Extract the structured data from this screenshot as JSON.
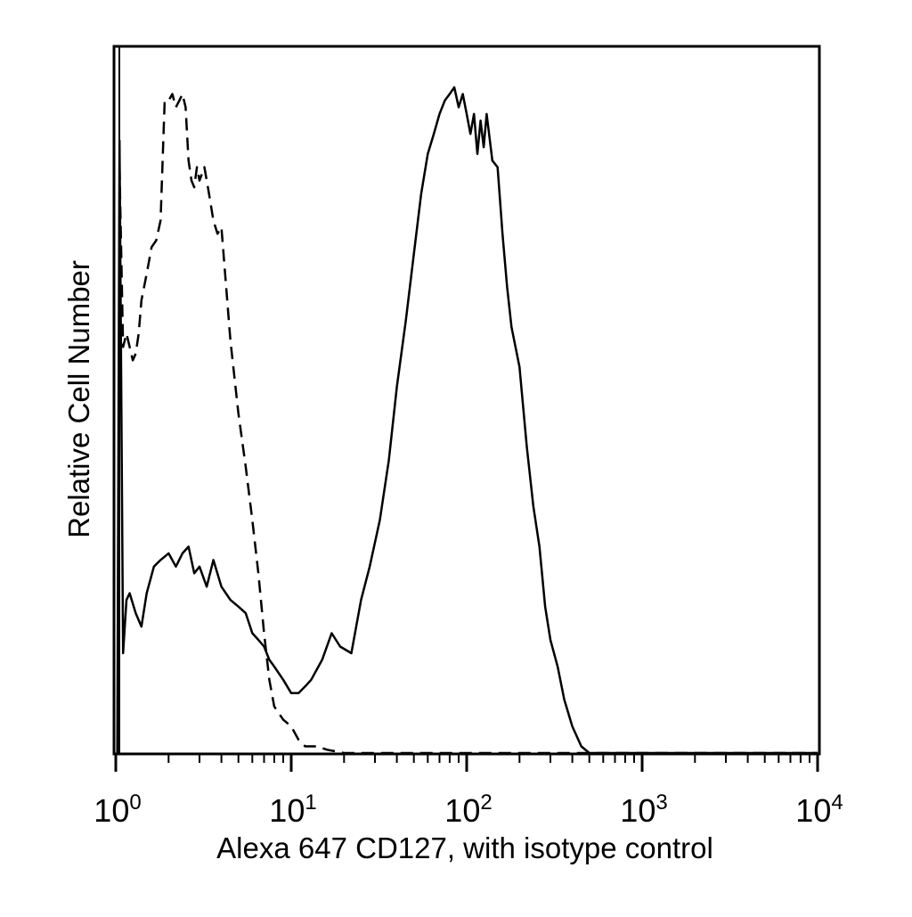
{
  "chart_data": {
    "type": "line",
    "title": "",
    "xlabel": "Alexa 647 CD127, with isotype control",
    "ylabel": "Relative Cell Number",
    "xscale": "log",
    "xlim": [
      1,
      10000
    ],
    "ylim": [
      0,
      1
    ],
    "grid": false,
    "x_ticks": [
      {
        "base": "10",
        "exp": "0",
        "value": 1
      },
      {
        "base": "10",
        "exp": "1",
        "value": 10
      },
      {
        "base": "10",
        "exp": "2",
        "value": 100
      },
      {
        "base": "10",
        "exp": "3",
        "value": 1000
      },
      {
        "base": "10",
        "exp": "4",
        "value": 10000
      }
    ],
    "series": [
      {
        "style": "solid",
        "color": "#000000",
        "x": [
          1.02,
          1.05,
          1.1,
          1.15,
          1.2,
          1.3,
          1.4,
          1.5,
          1.65,
          1.8,
          2.0,
          2.2,
          2.4,
          2.6,
          2.8,
          3.0,
          3.3,
          3.6,
          4.0,
          4.5,
          5.0,
          5.5,
          6.0,
          6.5,
          7.0,
          7.5,
          8.0,
          9.0,
          10.0,
          11.0,
          12.0,
          13.0,
          15.0,
          17.0,
          19.0,
          22.0,
          25.0,
          28.0,
          32.0,
          36.0,
          40.0,
          45.0,
          50.0,
          55.0,
          60.0,
          65.0,
          70.0,
          75.0,
          80.0,
          85.0,
          90.0,
          95.0,
          100.0,
          105.0,
          110.0,
          115.0,
          120.0,
          125.0,
          130.0,
          140.0,
          150.0,
          160.0,
          170.0,
          180.0,
          200.0,
          220.0,
          240.0,
          260.0,
          280.0,
          300.0,
          330.0,
          360.0,
          400.0,
          450.0,
          500.0,
          600.0,
          700.0,
          800.0,
          1000.0,
          2000.0,
          5000.0,
          10000.0
        ],
        "y": [
          0.0,
          0.92,
          0.15,
          0.23,
          0.24,
          0.21,
          0.19,
          0.24,
          0.28,
          0.29,
          0.3,
          0.28,
          0.3,
          0.31,
          0.27,
          0.28,
          0.25,
          0.29,
          0.25,
          0.23,
          0.22,
          0.21,
          0.18,
          0.17,
          0.16,
          0.14,
          0.13,
          0.11,
          0.09,
          0.09,
          0.1,
          0.11,
          0.14,
          0.18,
          0.16,
          0.15,
          0.23,
          0.28,
          0.35,
          0.44,
          0.55,
          0.65,
          0.75,
          0.84,
          0.9,
          0.93,
          0.96,
          0.98,
          0.99,
          1.0,
          0.97,
          0.99,
          0.96,
          0.93,
          0.96,
          0.9,
          0.95,
          0.91,
          0.96,
          0.89,
          0.88,
          0.78,
          0.7,
          0.64,
          0.58,
          0.46,
          0.37,
          0.31,
          0.22,
          0.17,
          0.13,
          0.08,
          0.04,
          0.01,
          0.0,
          0.0,
          0.0,
          0.0,
          0.0,
          0.0,
          0.0,
          0.0
        ]
      },
      {
        "style": "dashed",
        "color": "#000000",
        "x": [
          1.05,
          1.1,
          1.15,
          1.2,
          1.25,
          1.3,
          1.35,
          1.4,
          1.5,
          1.6,
          1.7,
          1.8,
          1.9,
          2.0,
          2.1,
          2.2,
          2.3,
          2.4,
          2.5,
          2.6,
          2.7,
          2.8,
          2.9,
          3.0,
          3.2,
          3.4,
          3.6,
          3.8,
          4.0,
          4.5,
          5.0,
          5.5,
          6.0,
          6.5,
          7.0,
          7.5,
          8.0,
          9.0,
          10.0,
          11.0,
          12.0,
          14.0,
          16.0,
          20.0,
          30.0,
          50.0,
          100.0,
          200.0,
          500.0,
          1000.0,
          10000.0
        ],
        "y": [
          0.88,
          0.61,
          0.63,
          0.61,
          0.59,
          0.6,
          0.63,
          0.68,
          0.72,
          0.76,
          0.77,
          0.8,
          0.98,
          0.98,
          0.99,
          0.97,
          0.98,
          0.99,
          0.97,
          0.89,
          0.86,
          0.85,
          0.88,
          0.86,
          0.88,
          0.84,
          0.8,
          0.78,
          0.79,
          0.62,
          0.51,
          0.43,
          0.35,
          0.27,
          0.18,
          0.11,
          0.07,
          0.05,
          0.04,
          0.02,
          0.01,
          0.01,
          0.005,
          0.0,
          0.0,
          0.0,
          0.0,
          0.0,
          0.0,
          0.0,
          0.0
        ]
      }
    ]
  }
}
